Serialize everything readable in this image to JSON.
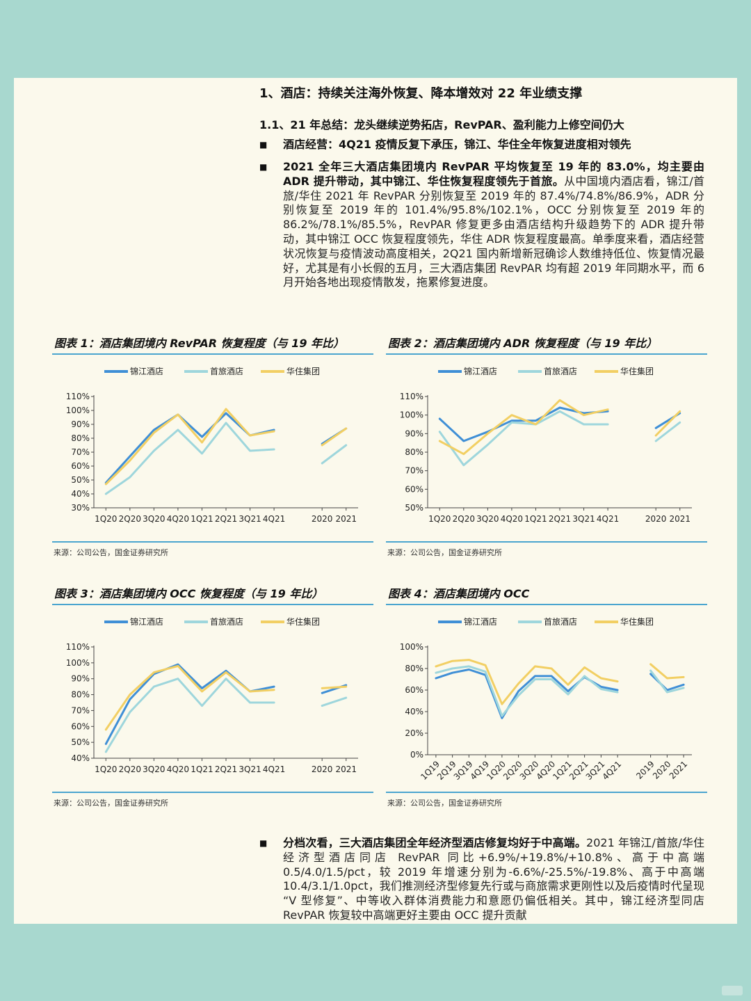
{
  "doc": {
    "h1": "1、酒店：持续关注海外恢复、降本增效对 22 年业绩支撑",
    "h2": "1.1、21 年总结：龙头继续逆势拓店，RevPAR、盈利能力上修空间仍大",
    "bullet_marker": "■",
    "bullet1_bold": "酒店经营：4Q21 疫情反复下承压，锦江、华住全年恢复进度相对领先",
    "bullet2_bold": "2021 全年三大酒店集团境内 RevPAR 平均恢复至 19 年的 83.0%，均主要由 ADR 提升带动，其中锦江、华住恢复程度领先于首旅。",
    "bullet2_text": "从中国境内酒店看，锦江/首旅/华住 2021 年 RevPAR 分别恢复至 2019 年的 87.4%/74.8%/86.9%，ADR 分别恢复至 2019 年的 101.4%/95.8%/102.1%，OCC 分别恢复至 2019 年的 86.2%/78.1%/85.5%，RevPAR 修复更多由酒店结构升级趋势下的 ADR 提升带动，其中锦江 OCC 恢复程度领先，华住 ADR 恢复程度最高。单季度来看，酒店经营状况恢复与疫情波动高度相关，2Q21 国内新增新冠确诊人数维持低位、恢复情况最好，尤其是有小长假的五月，三大酒店集团 RevPAR 均有超 2019 年同期水平，而 6 月开始各地出现疫情散发，拖累修复进度。",
    "bullet3_bold": "分档次看，三大酒店集团全年经济型酒店修复均好于中高端。",
    "bullet3_text": "2021 年锦江/首旅/华住经济型酒店同店 RevPAR 同比+6.9%/+19.8%/+10.8%、高于中高端 0.5/4.0/1.5/pct，较 2019 年增速分别为-6.6%/-25.5%/-19.8%、高于中高端 10.4/3.1/1.0pct，我们推测经济型修复先行或与商旅需求更刚性以及后疫情时代呈现 “V 型修复”、中等收入群体消费能力和意愿仍偏低相关。其中，锦江经济型同店 RevPAR 恢复较中高端更好主要由 OCC 提升贡献"
  },
  "colors": {
    "jinjiang": "#3f8fd6",
    "shoulv": "#9ed6dc",
    "huazhu": "#f2cf63",
    "rule": "#4aa5cf",
    "axis": "#444444"
  },
  "chart_data": [
    {
      "type": "line",
      "title": "图表 1：酒店集团境内 RevPAR 恢复程度（与 19 年比）",
      "source": "来源：公司公告，国金证券研究所",
      "categories": [
        "1Q20",
        "2Q20",
        "3Q20",
        "4Q20",
        "1Q21",
        "2Q21",
        "3Q21",
        "4Q21",
        "",
        "2020",
        "2021"
      ],
      "xtick_labels": [
        "1Q20",
        "2Q20",
        "3Q20",
        "4Q20",
        "1Q21",
        "2Q21",
        "3Q21",
        "4Q21",
        "2020",
        "2021"
      ],
      "yticks": [
        "110%",
        "100%",
        "90%",
        "80%",
        "70%",
        "60%",
        "50%",
        "40%",
        "30%"
      ],
      "ylim": [
        30,
        110
      ],
      "series": [
        {
          "name": "锦江酒店",
          "values": [
            48,
            67,
            86,
            97,
            81,
            98,
            82,
            86,
            null,
            76,
            87
          ]
        },
        {
          "name": "首旅酒店",
          "values": [
            40,
            52,
            71,
            86,
            69,
            91,
            71,
            72,
            null,
            62,
            75
          ]
        },
        {
          "name": "华住集团",
          "values": [
            47,
            64,
            84,
            97,
            77,
            101,
            82,
            85,
            null,
            75,
            87
          ]
        }
      ]
    },
    {
      "type": "line",
      "title": "图表 2：酒店集团境内 ADR 恢复程度（与 19 年比）",
      "source": "来源：公司公告，国金证券研究所",
      "categories": [
        "1Q20",
        "2Q20",
        "3Q20",
        "4Q20",
        "1Q21",
        "2Q21",
        "3Q21",
        "4Q21",
        "",
        "2020",
        "2021"
      ],
      "xtick_labels": [
        "1Q20",
        "2Q20",
        "3Q20",
        "4Q20",
        "1Q21",
        "2Q21",
        "3Q21",
        "4Q21",
        "2020",
        "2021"
      ],
      "yticks": [
        "110%",
        "100%",
        "90%",
        "80%",
        "70%",
        "60%",
        "50%"
      ],
      "ylim": [
        50,
        110
      ],
      "series": [
        {
          "name": "锦江酒店",
          "values": [
            98,
            86,
            91,
            97,
            97,
            104,
            101,
            102,
            null,
            93,
            101
          ]
        },
        {
          "name": "首旅酒店",
          "values": [
            91,
            73,
            84,
            96,
            95,
            102,
            95,
            95,
            null,
            86,
            96
          ]
        },
        {
          "name": "华住集团",
          "values": [
            86,
            79,
            90,
            100,
            95,
            108,
            100,
            103,
            null,
            89,
            102
          ]
        }
      ]
    },
    {
      "type": "line",
      "title": "图表 3：酒店集团境内 OCC 恢复程度（与 19 年比）",
      "source": "来源：公司公告，国金证券研究所",
      "categories": [
        "1Q20",
        "2Q20",
        "3Q20",
        "4Q20",
        "1Q21",
        "2Q21",
        "3Q21",
        "4Q21",
        "",
        "2020",
        "2021"
      ],
      "xtick_labels": [
        "1Q20",
        "2Q20",
        "3Q20",
        "4Q20",
        "1Q21",
        "2Q21",
        "3Q21",
        "4Q21",
        "2020",
        "2021"
      ],
      "yticks": [
        "110%",
        "100%",
        "90%",
        "80%",
        "70%",
        "60%",
        "50%",
        "40%"
      ],
      "ylim": [
        40,
        110
      ],
      "series": [
        {
          "name": "锦江酒店",
          "values": [
            49,
            77,
            93,
            99,
            84,
            95,
            82,
            85,
            null,
            81,
            86
          ]
        },
        {
          "name": "首旅酒店",
          "values": [
            44,
            69,
            85,
            90,
            73,
            90,
            75,
            75,
            null,
            73,
            78
          ]
        },
        {
          "name": "华住集团",
          "values": [
            58,
            80,
            94,
            98,
            82,
            94,
            82,
            83,
            null,
            84,
            85
          ]
        }
      ]
    },
    {
      "type": "line",
      "title": "图表 4：酒店集团境内 OCC",
      "source": "来源：公司公告，国金证券研究所",
      "categories": [
        "1Q19",
        "2Q19",
        "3Q19",
        "4Q19",
        "1Q20",
        "2Q20",
        "3Q20",
        "4Q20",
        "1Q21",
        "2Q21",
        "3Q21",
        "4Q21",
        "",
        "2019",
        "2020",
        "2021"
      ],
      "xtick_labels": [
        "1Q19",
        "2Q19",
        "3Q19",
        "4Q19",
        "1Q20",
        "2Q20",
        "3Q20",
        "4Q20",
        "1Q21",
        "2Q21",
        "3Q21",
        "4Q21",
        "2019",
        "2020",
        "2021"
      ],
      "yticks": [
        "100%",
        "80%",
        "60%",
        "40%",
        "20%",
        "0%"
      ],
      "ylim": [
        0,
        100
      ],
      "series": [
        {
          "name": "锦江酒店",
          "values": [
            71,
            76,
            79,
            74,
            34,
            59,
            73,
            73,
            59,
            72,
            63,
            60,
            null,
            75,
            60,
            65
          ]
        },
        {
          "name": "首旅酒店",
          "values": [
            76,
            80,
            82,
            77,
            36,
            55,
            70,
            70,
            56,
            73,
            61,
            58,
            null,
            78,
            58,
            62
          ]
        },
        {
          "name": "华住集团",
          "values": [
            82,
            87,
            88,
            83,
            47,
            66,
            82,
            80,
            65,
            81,
            71,
            68,
            null,
            84,
            71,
            72
          ]
        }
      ]
    }
  ]
}
